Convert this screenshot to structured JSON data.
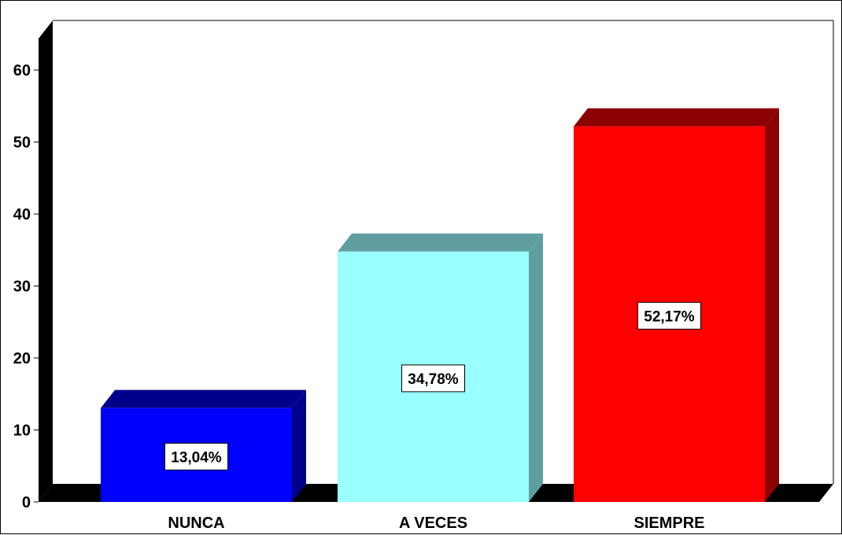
{
  "chart_data": {
    "type": "bar",
    "style": "3d",
    "categories": [
      "NUNCA",
      "A VECES",
      "SIEMPRE"
    ],
    "values": [
      13.04,
      34.78,
      52.17
    ],
    "data_labels": [
      "13,04%",
      "34,78%",
      "52,17%"
    ],
    "title": "",
    "xlabel": "",
    "ylabel": "",
    "ylim": [
      0,
      60
    ],
    "yticks": [
      0,
      10,
      20,
      30,
      40,
      50,
      60
    ],
    "grid": false,
    "legend": "none",
    "colors": {
      "bars": [
        {
          "front": "#0000FF",
          "top": "#00008B",
          "side": "#00008B"
        },
        {
          "front": "#99FFFF",
          "top": "#5F9EA0",
          "side": "#5F9EA0"
        },
        {
          "front": "#FF0000",
          "top": "#8B0000",
          "side": "#8B0000"
        }
      ],
      "wall": "#000000",
      "floor": "#000000",
      "plot_bg": "#FFFFFF"
    }
  }
}
